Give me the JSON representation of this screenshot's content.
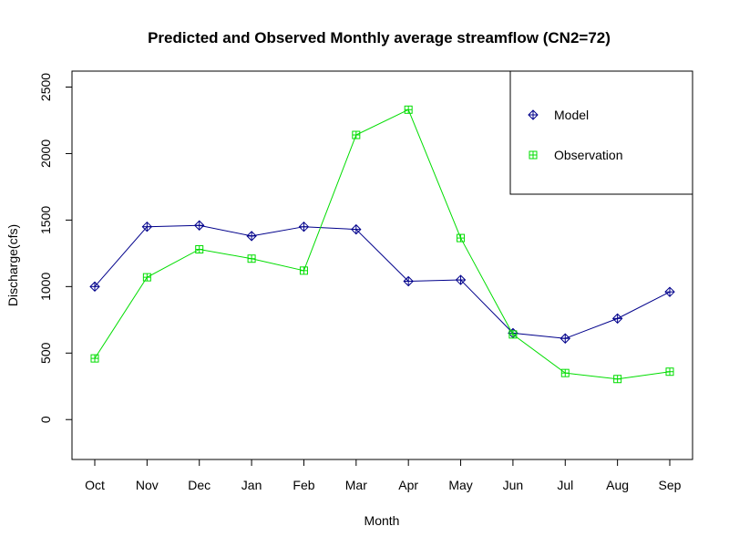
{
  "chart_data": {
    "type": "line",
    "title": "Predicted and Observed Monthly average streamflow (CN2=72)",
    "xlabel": "Month",
    "ylabel": "Discharge(cfs)",
    "categories": [
      "Oct",
      "Nov",
      "Dec",
      "Jan",
      "Feb",
      "Mar",
      "Apr",
      "May",
      "Jun",
      "Jul",
      "Aug",
      "Sep"
    ],
    "yticks": [
      0,
      500,
      1000,
      1500,
      2000,
      2500
    ],
    "ylim": [
      -300,
      2620
    ],
    "grid": false,
    "legend_position": "top-right",
    "series": [
      {
        "name": "Model",
        "color": "#00008B",
        "marker": "diamond-plus",
        "values": [
          1000,
          1450,
          1460,
          1380,
          1450,
          1430,
          1040,
          1050,
          650,
          610,
          760,
          960
        ]
      },
      {
        "name": "Observation",
        "color": "#00DD00",
        "marker": "square-plus",
        "values": [
          460,
          1070,
          1280,
          1210,
          1120,
          2140,
          2330,
          1365,
          640,
          350,
          305,
          360
        ]
      }
    ]
  }
}
